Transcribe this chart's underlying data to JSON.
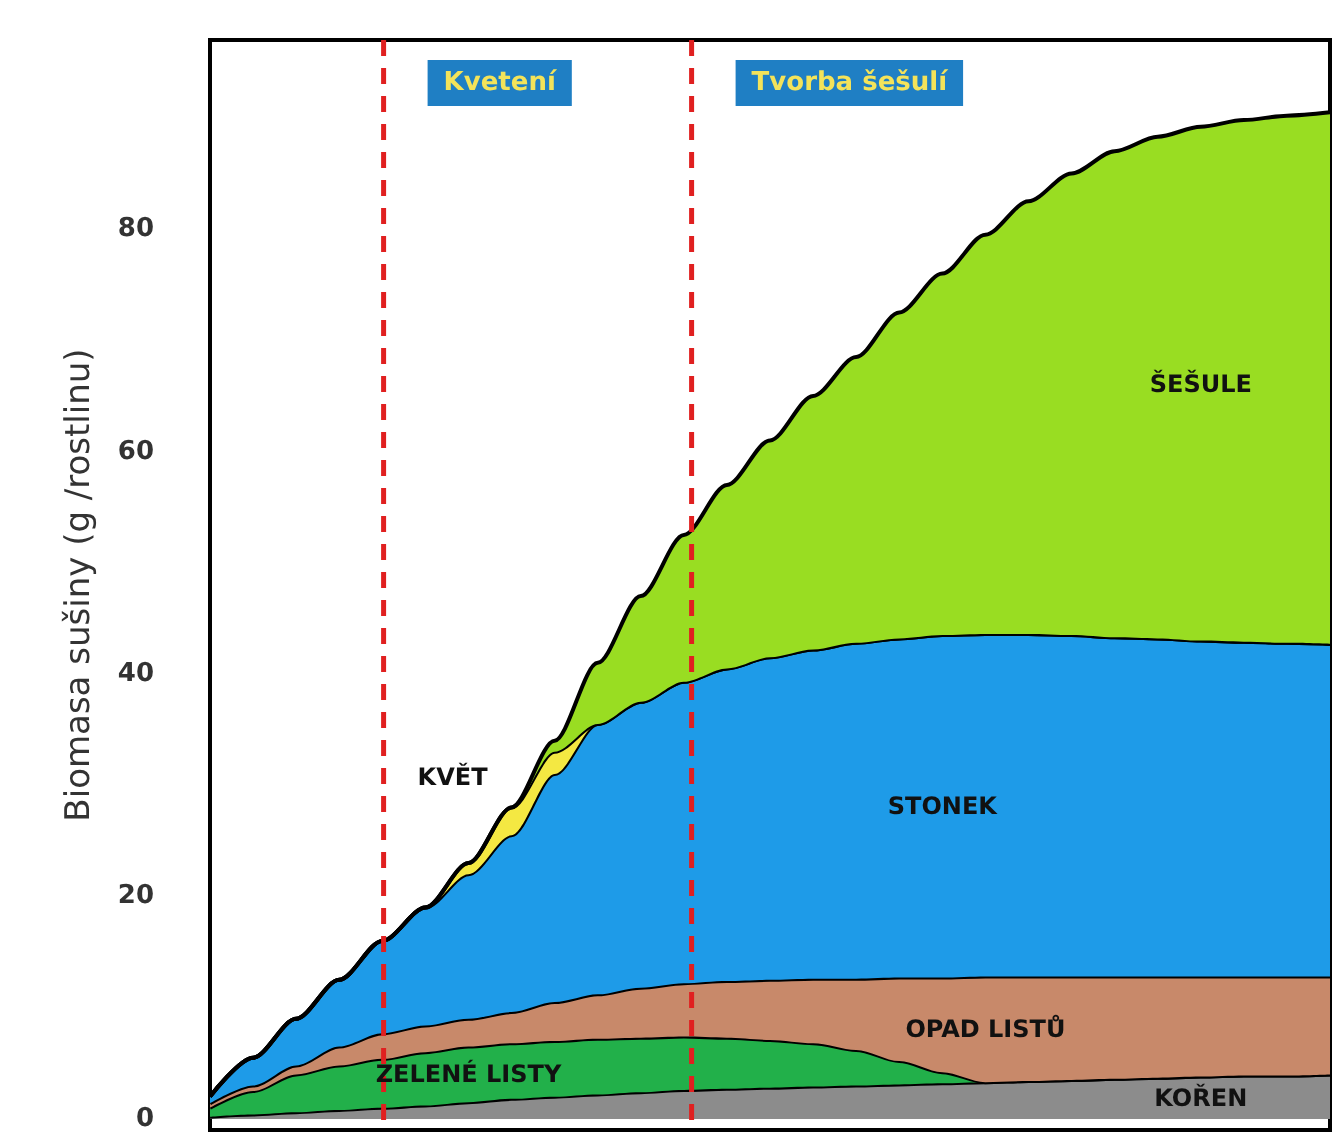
{
  "chart_data": {
    "type": "area",
    "stacked": true,
    "ylabel": "Biomasa sušiny (g /rostlinu)",
    "ylim": [
      -1,
      97
    ],
    "yticks": [
      0,
      20,
      40,
      60,
      80
    ],
    "grid": false,
    "legend": false,
    "categories": [
      null,
      null,
      null,
      null,
      null,
      null,
      null,
      null,
      null,
      null,
      null,
      null,
      null,
      null,
      null,
      null,
      null,
      null,
      null,
      null,
      null,
      null,
      null,
      null,
      null,
      null,
      null
    ],
    "series": [
      {
        "name": "KOŘEN",
        "color": "#8c8c8c",
        "values": [
          0.2,
          0.4,
          0.6,
          0.8,
          1,
          1.2,
          1.5,
          1.8,
          2,
          2.2,
          2.4,
          2.6,
          2.7,
          2.8,
          2.9,
          3,
          3.1,
          3.2,
          3.3,
          3.4,
          3.5,
          3.6,
          3.7,
          3.8,
          3.9,
          3.9,
          4
        ]
      },
      {
        "name": "ZELENÉ LISTY",
        "color": "#22b04a",
        "values": [
          0.8,
          2.1,
          3.4,
          4,
          4.4,
          4.8,
          5,
          5,
          5,
          5,
          4.9,
          4.8,
          4.6,
          4.3,
          3.9,
          3.2,
          2.1,
          1,
          0,
          0,
          0,
          0,
          0,
          0,
          0,
          0,
          0
        ]
      },
      {
        "name": "OPAD LISTŮ",
        "color": "#c8896a",
        "values": [
          0.4,
          0.5,
          0.8,
          1.7,
          2.3,
          2.4,
          2.5,
          2.8,
          3.5,
          4,
          4.5,
          4.8,
          5.1,
          5.4,
          5.8,
          6.4,
          7.5,
          8.5,
          9.5,
          9.4,
          9.3,
          9.2,
          9.1,
          9,
          8.9,
          8.9,
          8.8
        ]
      },
      {
        "name": "STONEK",
        "color": "#1e9be8",
        "values": [
          0.6,
          2.5,
          4.2,
          6,
          8.3,
          10.6,
          13,
          15.9,
          20.5,
          24.3,
          25.7,
          27.1,
          28.1,
          29,
          29.6,
          30.2,
          30.5,
          30.8,
          30.8,
          30.8,
          30.7,
          30.5,
          30.4,
          30.2,
          30.1,
          30,
          29.9
        ]
      },
      {
        "name": "KVĚT",
        "color": "#f4e842",
        "values": [
          0,
          0,
          0,
          0,
          0,
          0,
          1,
          2.5,
          2,
          0,
          0,
          0,
          0,
          0,
          0,
          0,
          0,
          0,
          0,
          0,
          0,
          0,
          0,
          0,
          0,
          0,
          0
        ]
      },
      {
        "name": "ŠEŠULE",
        "color": "#99dd22",
        "values": [
          0,
          0,
          0,
          0,
          0,
          0,
          0,
          0,
          1,
          5.5,
          9.5,
          13.2,
          16.5,
          19.5,
          22.8,
          25.7,
          29.3,
          32.5,
          35.9,
          38.9,
          41.5,
          43.7,
          45.1,
          46.2,
          46.9,
          47.4,
          47.8
        ]
      }
    ],
    "annotations": [
      "Kvetení",
      "Tvorba šešulí"
    ]
  }
}
